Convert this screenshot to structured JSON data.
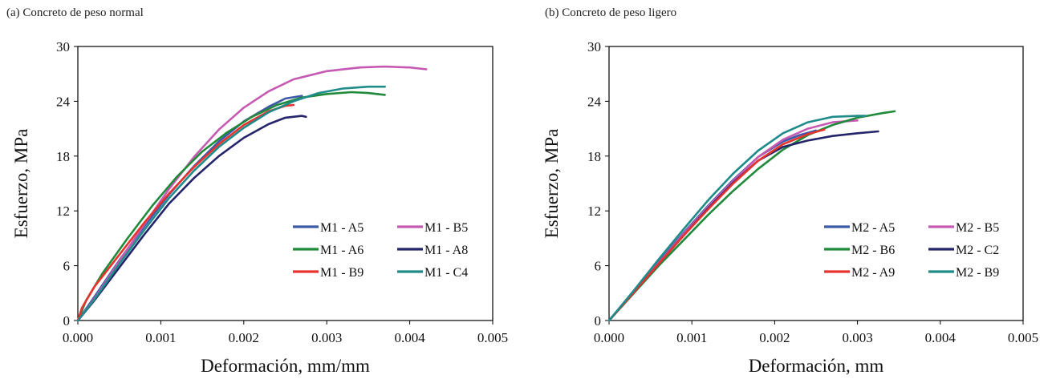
{
  "chart_data": [
    {
      "type": "line",
      "panel_title": "(a) Concreto de peso normal",
      "xlabel": "Deformación, mm/mm",
      "ylabel": "Esfuerzo,  MPa",
      "xlim": [
        0,
        0.005
      ],
      "ylim": [
        0,
        30
      ],
      "xticks": [
        "0.000",
        "0.001",
        "0.002",
        "0.003",
        "0.004",
        "0.005"
      ],
      "yticks": [
        "0",
        "6",
        "12",
        "18",
        "24",
        "30"
      ],
      "grid": false,
      "legend_position": "bottom-right",
      "series": [
        {
          "name": "M1 - A5",
          "color": "#3c58a8",
          "points": [
            [
              0,
              0
            ],
            [
              0.0002,
              2.6
            ],
            [
              0.0005,
              6.6
            ],
            [
              0.0008,
              10.3
            ],
            [
              0.0011,
              13.8
            ],
            [
              0.0014,
              16.9
            ],
            [
              0.0017,
              19.6
            ],
            [
              0.002,
              21.8
            ],
            [
              0.0023,
              23.4
            ],
            [
              0.0025,
              24.3
            ],
            [
              0.0027,
              24.6
            ]
          ]
        },
        {
          "name": "M1 - B5",
          "color": "#c65ab2",
          "points": [
            [
              0,
              0
            ],
            [
              0.0002,
              2.4
            ],
            [
              0.0005,
              6.5
            ],
            [
              0.0008,
              10.5
            ],
            [
              0.0011,
              14.4
            ],
            [
              0.0014,
              17.9
            ],
            [
              0.0017,
              20.9
            ],
            [
              0.002,
              23.3
            ],
            [
              0.0023,
              25.1
            ],
            [
              0.0026,
              26.4
            ],
            [
              0.003,
              27.3
            ],
            [
              0.0034,
              27.7
            ],
            [
              0.0037,
              27.8
            ],
            [
              0.004,
              27.7
            ],
            [
              0.0042,
              27.5
            ]
          ]
        },
        {
          "name": "M1 - A6",
          "color": "#1f8a3a",
          "points": [
            [
              0,
              0
            ],
            [
              0.0001,
              2.2
            ],
            [
              0.0003,
              5.2
            ],
            [
              0.0006,
              9.0
            ],
            [
              0.0009,
              12.6
            ],
            [
              0.0012,
              15.8
            ],
            [
              0.0015,
              18.5
            ],
            [
              0.0018,
              20.6
            ],
            [
              0.0021,
              22.3
            ],
            [
              0.0024,
              23.6
            ],
            [
              0.0027,
              24.4
            ],
            [
              0.003,
              24.8
            ],
            [
              0.0033,
              25.0
            ],
            [
              0.0035,
              24.9
            ],
            [
              0.0037,
              24.7
            ]
          ]
        },
        {
          "name": "M1 - A8",
          "color": "#24246a",
          "points": [
            [
              0,
              0
            ],
            [
              0.0002,
              2.2
            ],
            [
              0.0005,
              5.8
            ],
            [
              0.0008,
              9.4
            ],
            [
              0.0011,
              12.8
            ],
            [
              0.0014,
              15.6
            ],
            [
              0.0017,
              18.0
            ],
            [
              0.002,
              20.0
            ],
            [
              0.0023,
              21.5
            ],
            [
              0.0025,
              22.2
            ],
            [
              0.0027,
              22.4
            ],
            [
              0.00275,
              22.3
            ]
          ]
        },
        {
          "name": "M1 - B9",
          "color": "#e8322d",
          "points": [
            [
              0,
              0
            ],
            [
              5e-05,
              1.4
            ],
            [
              0.0002,
              3.7
            ],
            [
              0.0005,
              7.2
            ],
            [
              0.0008,
              10.7
            ],
            [
              0.0011,
              13.9
            ],
            [
              0.0014,
              16.8
            ],
            [
              0.0017,
              19.3
            ],
            [
              0.002,
              21.4
            ],
            [
              0.0023,
              22.9
            ],
            [
              0.0025,
              23.5
            ],
            [
              0.0026,
              23.6
            ]
          ]
        },
        {
          "name": "M1 - C4",
          "color": "#1f8b8b",
          "points": [
            [
              0,
              0
            ],
            [
              0.0002,
              2.3
            ],
            [
              0.0005,
              6.2
            ],
            [
              0.0008,
              9.9
            ],
            [
              0.0011,
              13.4
            ],
            [
              0.0014,
              16.4
            ],
            [
              0.0017,
              19.0
            ],
            [
              0.002,
              21.1
            ],
            [
              0.0023,
              22.8
            ],
            [
              0.0026,
              24.0
            ],
            [
              0.0029,
              24.9
            ],
            [
              0.0032,
              25.4
            ],
            [
              0.0035,
              25.6
            ],
            [
              0.0037,
              25.6
            ]
          ]
        }
      ]
    },
    {
      "type": "line",
      "panel_title": "(b) Concreto de peso ligero",
      "xlabel": "Deformación, mm",
      "ylabel": "Esfuerzo,  MPa",
      "xlim": [
        0,
        0.005
      ],
      "ylim": [
        0,
        30
      ],
      "xticks": [
        "0.000",
        "0.001",
        "0.002",
        "0.003",
        "0.004",
        "0.005"
      ],
      "yticks": [
        "0",
        "6",
        "12",
        "18",
        "24",
        "30"
      ],
      "grid": false,
      "legend_position": "bottom-right",
      "series": [
        {
          "name": "M2 - A5",
          "color": "#3c58a8",
          "points": [
            [
              0,
              0
            ],
            [
              0.0003,
              3.2
            ],
            [
              0.0006,
              6.4
            ],
            [
              0.0009,
              9.6
            ],
            [
              0.0012,
              12.6
            ],
            [
              0.0015,
              15.4
            ],
            [
              0.0018,
              17.9
            ],
            [
              0.0021,
              19.6
            ],
            [
              0.0023,
              20.3
            ],
            [
              0.0025,
              20.8
            ]
          ]
        },
        {
          "name": "M2 - B5",
          "color": "#c65ab2",
          "points": [
            [
              0,
              0
            ],
            [
              0.0003,
              3.2
            ],
            [
              0.0006,
              6.3
            ],
            [
              0.0009,
              9.5
            ],
            [
              0.0012,
              12.5
            ],
            [
              0.0015,
              15.3
            ],
            [
              0.0018,
              17.9
            ],
            [
              0.0021,
              19.8
            ],
            [
              0.0024,
              21.0
            ],
            [
              0.0027,
              21.7
            ],
            [
              0.003,
              21.9
            ]
          ]
        },
        {
          "name": "M2 - B6",
          "color": "#1f8a3a",
          "points": [
            [
              0,
              0
            ],
            [
              0.0003,
              3.0
            ],
            [
              0.0006,
              6.0
            ],
            [
              0.0009,
              8.8
            ],
            [
              0.0012,
              11.6
            ],
            [
              0.0015,
              14.2
            ],
            [
              0.0018,
              16.6
            ],
            [
              0.0021,
              18.7
            ],
            [
              0.0024,
              20.3
            ],
            [
              0.0027,
              21.4
            ],
            [
              0.003,
              22.2
            ],
            [
              0.0033,
              22.7
            ],
            [
              0.00345,
              22.9
            ]
          ]
        },
        {
          "name": "M2 - C2",
          "color": "#24246a",
          "points": [
            [
              0,
              0
            ],
            [
              0.0003,
              3.1
            ],
            [
              0.0006,
              6.2
            ],
            [
              0.0009,
              9.3
            ],
            [
              0.0012,
              12.3
            ],
            [
              0.0015,
              15.1
            ],
            [
              0.0018,
              17.5
            ],
            [
              0.0021,
              19.0
            ],
            [
              0.0024,
              19.7
            ],
            [
              0.0027,
              20.2
            ],
            [
              0.003,
              20.5
            ],
            [
              0.00325,
              20.7
            ]
          ]
        },
        {
          "name": "M2 - A9",
          "color": "#e8322d",
          "points": [
            [
              0,
              0
            ],
            [
              0.0003,
              3.1
            ],
            [
              0.0006,
              6.2
            ],
            [
              0.0009,
              9.3
            ],
            [
              0.0012,
              12.2
            ],
            [
              0.0015,
              15.0
            ],
            [
              0.0018,
              17.5
            ],
            [
              0.0021,
              19.3
            ],
            [
              0.0024,
              20.4
            ],
            [
              0.0026,
              20.9
            ]
          ]
        },
        {
          "name": "M2 - B9",
          "color": "#1f8b8b",
          "points": [
            [
              0,
              0
            ],
            [
              0.0003,
              3.3
            ],
            [
              0.0006,
              6.7
            ],
            [
              0.0009,
              10.0
            ],
            [
              0.0012,
              13.2
            ],
            [
              0.0015,
              16.1
            ],
            [
              0.0018,
              18.6
            ],
            [
              0.0021,
              20.5
            ],
            [
              0.0024,
              21.7
            ],
            [
              0.0027,
              22.3
            ],
            [
              0.003,
              22.4
            ],
            [
              0.0031,
              22.4
            ]
          ]
        }
      ]
    }
  ]
}
